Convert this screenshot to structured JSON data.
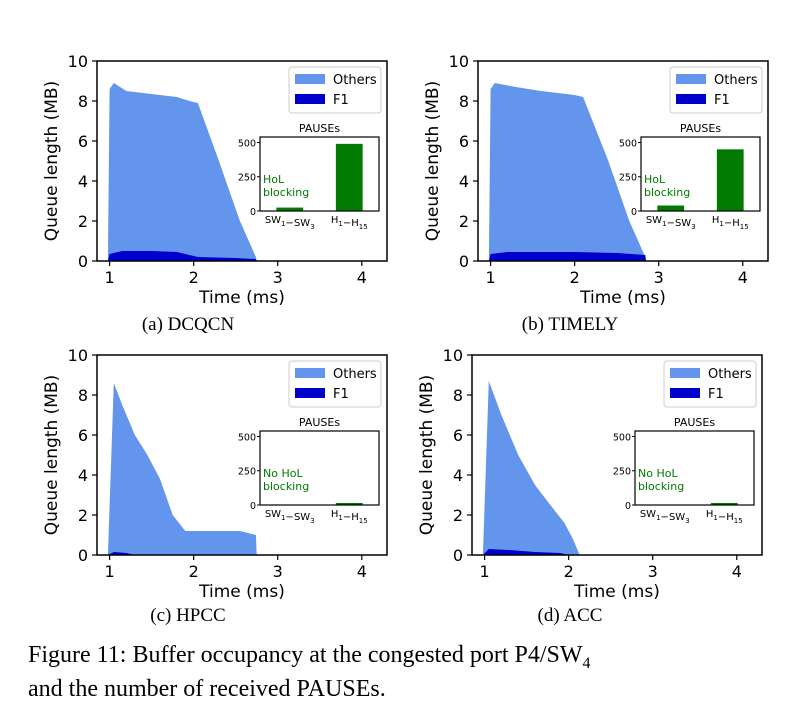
{
  "figure": {
    "caption_line1": "Figure 11: Buffer occupancy at the congested port P4/SW",
    "caption_sub": "4",
    "caption_line2": "and the number of received PAUSEs."
  },
  "colors": {
    "others": "#6495ED",
    "f1": "#0000CD",
    "bars": "#007A00",
    "hol_text": "#007A00"
  },
  "chart_data": [
    {
      "type": "area",
      "subcaption": "(a)  DCQCN",
      "title": "",
      "xlabel": "Time (ms)",
      "ylabel": "Queue length (MB)",
      "xlim": [
        0.85,
        4.3
      ],
      "ylim": [
        0,
        10
      ],
      "xticks": [
        1,
        2,
        3,
        4
      ],
      "yticks": [
        0,
        2,
        4,
        6,
        8,
        10
      ],
      "legend": {
        "placement": "top-right",
        "entries": [
          "Others",
          "F1"
        ]
      },
      "series": [
        {
          "name": "Others",
          "x": [
            0.98,
            1.0,
            1.05,
            1.2,
            1.4,
            1.6,
            1.8,
            1.95,
            2.05,
            2.3,
            2.55,
            2.74,
            2.75
          ],
          "y": [
            0,
            8.6,
            8.9,
            8.5,
            8.4,
            8.3,
            8.2,
            8.0,
            7.9,
            5.0,
            2.0,
            0.2,
            0
          ]
        },
        {
          "name": "F1",
          "x": [
            0.98,
            1.0,
            1.15,
            1.5,
            1.8,
            1.95,
            2.05,
            2.5,
            2.74,
            2.75
          ],
          "y": [
            0,
            0.35,
            0.5,
            0.5,
            0.45,
            0.3,
            0.2,
            0.15,
            0.1,
            0
          ]
        }
      ],
      "inset": {
        "title": "PAUSEs",
        "categories": [
          "SW1−SW3",
          "H1−H15"
        ],
        "values": [
          25,
          490
        ],
        "ylim": [
          0,
          540
        ],
        "yticks": [
          0,
          250,
          500
        ],
        "annotation_line1": "HoL",
        "annotation_line2": "blocking"
      }
    },
    {
      "type": "area",
      "subcaption": "(b)  TIMELY",
      "title": "",
      "xlabel": "Time (ms)",
      "ylabel": "Queue length (MB)",
      "xlim": [
        0.85,
        4.3
      ],
      "ylim": [
        0,
        10
      ],
      "xticks": [
        1,
        2,
        3,
        4
      ],
      "yticks": [
        0,
        2,
        4,
        6,
        8,
        10
      ],
      "legend": {
        "placement": "top-right",
        "entries": [
          "Others",
          "F1"
        ]
      },
      "series": [
        {
          "name": "Others",
          "x": [
            0.98,
            1.0,
            1.05,
            1.3,
            1.6,
            1.8,
            2.0,
            2.1,
            2.4,
            2.65,
            2.84,
            2.85
          ],
          "y": [
            0,
            8.6,
            8.9,
            8.7,
            8.5,
            8.4,
            8.3,
            8.2,
            5.0,
            2.0,
            0.2,
            0
          ]
        },
        {
          "name": "F1",
          "x": [
            0.98,
            1.0,
            1.2,
            2.0,
            2.5,
            2.84,
            2.85
          ],
          "y": [
            0,
            0.35,
            0.45,
            0.45,
            0.4,
            0.3,
            0
          ]
        }
      ],
      "inset": {
        "title": "PAUSEs",
        "categories": [
          "SW1−SW3",
          "H1−H15"
        ],
        "values": [
          40,
          450
        ],
        "ylim": [
          0,
          540
        ],
        "yticks": [
          0,
          250,
          500
        ],
        "annotation_line1": "HoL",
        "annotation_line2": "blocking"
      }
    },
    {
      "type": "area",
      "subcaption": "(c)  HPCC",
      "title": "",
      "xlabel": "Time (ms)",
      "ylabel": "Queue length (MB)",
      "xlim": [
        0.85,
        4.3
      ],
      "ylim": [
        0,
        10
      ],
      "xticks": [
        1,
        2,
        3,
        4
      ],
      "yticks": [
        0,
        2,
        4,
        6,
        8,
        10
      ],
      "legend": {
        "placement": "top-right",
        "entries": [
          "Others",
          "F1"
        ]
      },
      "series": [
        {
          "name": "Others",
          "x": [
            0.98,
            1.05,
            1.15,
            1.3,
            1.45,
            1.6,
            1.75,
            1.9,
            2.0,
            2.3,
            2.55,
            2.74,
            2.75
          ],
          "y": [
            0,
            8.6,
            7.5,
            6.0,
            5.0,
            3.8,
            2.0,
            1.2,
            1.2,
            1.2,
            1.2,
            1.0,
            0
          ]
        },
        {
          "name": "F1",
          "x": [
            0.98,
            1.05,
            1.2,
            1.3
          ],
          "y": [
            0,
            0.15,
            0.1,
            0
          ]
        }
      ],
      "inset": {
        "title": "PAUSEs",
        "categories": [
          "SW1−SW3",
          "H1−H15"
        ],
        "values": [
          0,
          15
        ],
        "ylim": [
          0,
          540
        ],
        "yticks": [
          0,
          250,
          500
        ],
        "annotation_line1": "No HoL",
        "annotation_line2": "blocking"
      }
    },
    {
      "type": "area",
      "subcaption": "(d)  ACC",
      "title": "",
      "xlabel": "Time (ms)",
      "ylabel": "Queue length (MB)",
      "xlim": [
        0.85,
        4.3
      ],
      "ylim": [
        0,
        10
      ],
      "xticks": [
        1,
        2,
        3,
        4
      ],
      "yticks": [
        0,
        2,
        4,
        6,
        8,
        10
      ],
      "legend": {
        "placement": "top-right",
        "entries": [
          "Others",
          "F1"
        ]
      },
      "series": [
        {
          "name": "Others",
          "x": [
            0.98,
            1.05,
            1.2,
            1.4,
            1.6,
            1.8,
            1.95,
            2.05,
            2.12,
            2.13
          ],
          "y": [
            0,
            8.7,
            7.0,
            5.0,
            3.5,
            2.4,
            1.6,
            0.8,
            0.1,
            0
          ]
        },
        {
          "name": "F1",
          "x": [
            0.98,
            1.05,
            1.3,
            1.6,
            1.9,
            2.0
          ],
          "y": [
            0,
            0.3,
            0.25,
            0.15,
            0.1,
            0
          ]
        }
      ],
      "inset": {
        "title": "PAUSEs",
        "categories": [
          "SW1−SW3",
          "H1−H15"
        ],
        "values": [
          0,
          15
        ],
        "ylim": [
          0,
          540
        ],
        "yticks": [
          0,
          250,
          500
        ],
        "annotation_line1": "No HoL",
        "annotation_line2": "blocking"
      }
    }
  ]
}
